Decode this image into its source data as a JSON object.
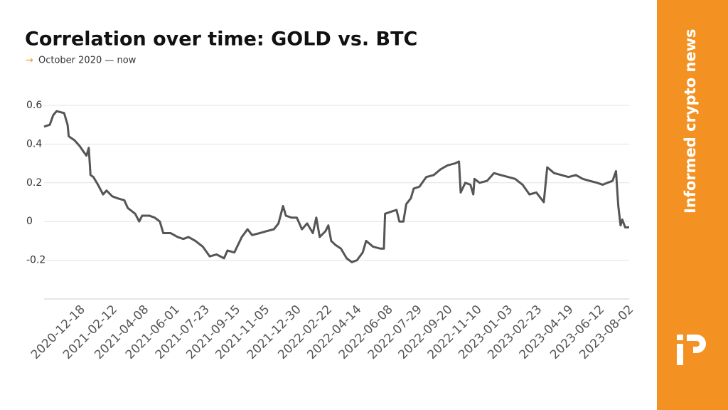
{
  "chart_data": {
    "type": "line",
    "title": "Correlation over time: GOLD vs. BTC",
    "subtitle": "October 2020 — now",
    "brand": "Informed crypto news",
    "color": "#555555",
    "grid": true,
    "ylim": [
      -0.4,
      0.6
    ],
    "yticks": [
      -0.2,
      0,
      0.2,
      0.4,
      0.6
    ],
    "xlim": [
      "2020-10-16",
      "2023-08-03"
    ],
    "xticks": [
      "2020-12-18",
      "2021-02-12",
      "2021-04-08",
      "2021-06-01",
      "2021-07-23",
      "2021-09-15",
      "2021-11-05",
      "2021-12-30",
      "2022-02-22",
      "2022-04-14",
      "2022-06-08",
      "2022-07-29",
      "2022-09-20",
      "2022-11-10",
      "2023-01-03",
      "2023-02-23",
      "2023-04-19",
      "2023-06-12",
      "2023-08-02"
    ],
    "x": [
      "2020-10-16",
      "2020-10-26",
      "2020-11-01",
      "2020-11-07",
      "2020-11-20",
      "2020-11-26",
      "2020-11-28",
      "2020-12-08",
      "2020-12-17",
      "2020-12-24",
      "2020-12-29",
      "2021-01-02",
      "2021-01-05",
      "2021-01-10",
      "2021-01-18",
      "2021-01-27",
      "2021-02-02",
      "2021-02-12",
      "2021-02-21",
      "2021-03-05",
      "2021-03-11",
      "2021-03-24",
      "2021-03-31",
      "2021-04-05",
      "2021-04-18",
      "2021-04-27",
      "2021-05-06",
      "2021-05-12",
      "2021-05-25",
      "2021-06-06",
      "2021-06-16",
      "2021-06-25",
      "2021-07-07",
      "2021-07-20",
      "2021-08-01",
      "2021-08-13",
      "2021-08-26",
      "2021-09-01",
      "2021-09-13",
      "2021-09-26",
      "2021-10-06",
      "2021-10-14",
      "2021-10-27",
      "2021-11-08",
      "2021-11-21",
      "2021-11-29",
      "2021-12-07",
      "2021-12-12",
      "2021-12-22",
      "2021-12-31",
      "2022-01-09",
      "2022-01-18",
      "2022-01-28",
      "2022-02-03",
      "2022-02-09",
      "2022-02-19",
      "2022-02-24",
      "2022-03-01",
      "2022-03-08",
      "2022-03-18",
      "2022-03-28",
      "2022-04-06",
      "2022-04-15",
      "2022-04-25",
      "2022-05-01",
      "2022-05-13",
      "2022-05-26",
      "2022-06-01",
      "2022-06-03",
      "2022-06-13",
      "2022-06-23",
      "2022-06-28",
      "2022-07-05",
      "2022-07-10",
      "2022-07-18",
      "2022-07-23",
      "2022-08-02",
      "2022-08-14",
      "2022-08-27",
      "2022-09-08",
      "2022-09-20",
      "2022-10-03",
      "2022-10-10",
      "2022-10-13",
      "2022-10-21",
      "2022-10-30",
      "2022-11-04",
      "2022-11-06",
      "2022-11-15",
      "2022-11-28",
      "2022-12-10",
      "2022-12-22",
      "2023-01-04",
      "2023-01-16",
      "2023-01-29",
      "2023-02-10",
      "2023-02-22",
      "2023-03-07",
      "2023-03-13",
      "2023-03-25",
      "2023-04-07",
      "2023-04-19",
      "2023-05-02",
      "2023-05-14",
      "2023-05-26",
      "2023-06-08",
      "2023-06-18",
      "2023-06-26",
      "2023-07-05",
      "2023-07-11",
      "2023-07-15",
      "2023-07-19",
      "2023-07-22",
      "2023-07-27",
      "2023-08-03"
    ],
    "values": [
      0.49,
      0.5,
      0.55,
      0.57,
      0.56,
      0.5,
      0.44,
      0.42,
      0.39,
      0.36,
      0.34,
      0.38,
      0.24,
      0.23,
      0.19,
      0.14,
      0.16,
      0.13,
      0.12,
      0.11,
      0.07,
      0.04,
      0.0,
      0.03,
      0.03,
      0.02,
      0.0,
      -0.06,
      -0.06,
      -0.08,
      -0.09,
      -0.08,
      -0.1,
      -0.13,
      -0.18,
      -0.17,
      -0.19,
      -0.15,
      -0.16,
      -0.08,
      -0.04,
      -0.07,
      -0.06,
      -0.05,
      -0.04,
      -0.01,
      0.08,
      0.03,
      0.02,
      0.02,
      -0.04,
      -0.01,
      -0.06,
      0.02,
      -0.08,
      -0.05,
      -0.02,
      -0.1,
      -0.12,
      -0.14,
      -0.19,
      -0.21,
      -0.2,
      -0.16,
      -0.1,
      -0.13,
      -0.14,
      -0.14,
      0.04,
      0.05,
      0.06,
      0.0,
      0.0,
      0.09,
      0.12,
      0.17,
      0.18,
      0.23,
      0.24,
      0.27,
      0.29,
      0.3,
      0.31,
      0.15,
      0.2,
      0.19,
      0.14,
      0.22,
      0.2,
      0.21,
      0.25,
      0.24,
      0.23,
      0.22,
      0.19,
      0.14,
      0.15,
      0.1,
      0.28,
      0.25,
      0.24,
      0.23,
      0.24,
      0.22,
      0.21,
      0.2,
      0.19,
      0.2,
      0.21,
      0.26,
      0.08,
      -0.02,
      0.01,
      -0.03,
      -0.03
    ]
  }
}
